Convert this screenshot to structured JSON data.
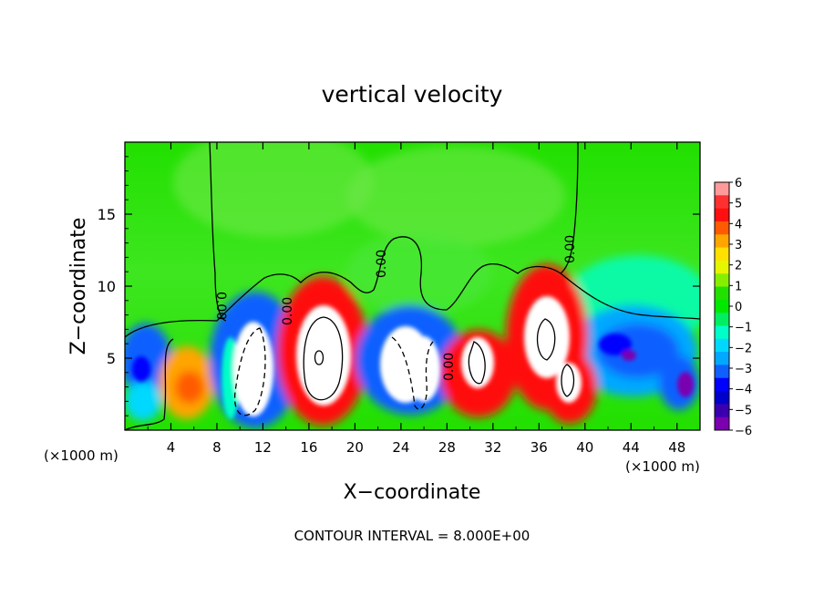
{
  "chart_data": {
    "type": "heatmap",
    "title": "vertical velocity",
    "xlabel": "X−coordinate",
    "ylabel": "Z−coordinate",
    "x_unit_label": "(×1000 m)",
    "x_unit_label_right": "(×1000 m)",
    "footer": "CONTOUR INTERVAL = 8.000E+00",
    "xlim": [
      0,
      50
    ],
    "ylim": [
      0,
      20
    ],
    "x_ticks": [
      4,
      8,
      12,
      16,
      20,
      24,
      28,
      32,
      36,
      40,
      44,
      48
    ],
    "x_tick_labels": [
      "4",
      "8",
      "12",
      "16",
      "20",
      "24",
      "28",
      "32",
      "36",
      "40",
      "44",
      "48"
    ],
    "y_ticks": [
      5,
      10,
      15
    ],
    "y_tick_labels": [
      "5",
      "10",
      "15"
    ],
    "colorbar": {
      "min": -6,
      "max": 6,
      "tick_labels": [
        "6",
        "5",
        "4",
        "3",
        "2",
        "1",
        "0",
        "−1",
        "−2",
        "−3",
        "−4",
        "−5",
        "−6"
      ],
      "colors": [
        "#ff9a9a",
        "#ff3030",
        "#ff1010",
        "#ff5a00",
        "#ffa500",
        "#ffe000",
        "#e6f500",
        "#88ee00",
        "#22e000",
        "#00e800",
        "#00ee60",
        "#00ffc8",
        "#00d8ff",
        "#00a8ff",
        "#1060ff",
        "#0000ff",
        "#0000cc",
        "#3a00b0",
        "#7a00b0"
      ]
    },
    "contour_labels": [
      "0.00",
      "0.00",
      "0.00",
      "0.00",
      "0.00"
    ],
    "grid": false,
    "legend": "colorbar right"
  }
}
